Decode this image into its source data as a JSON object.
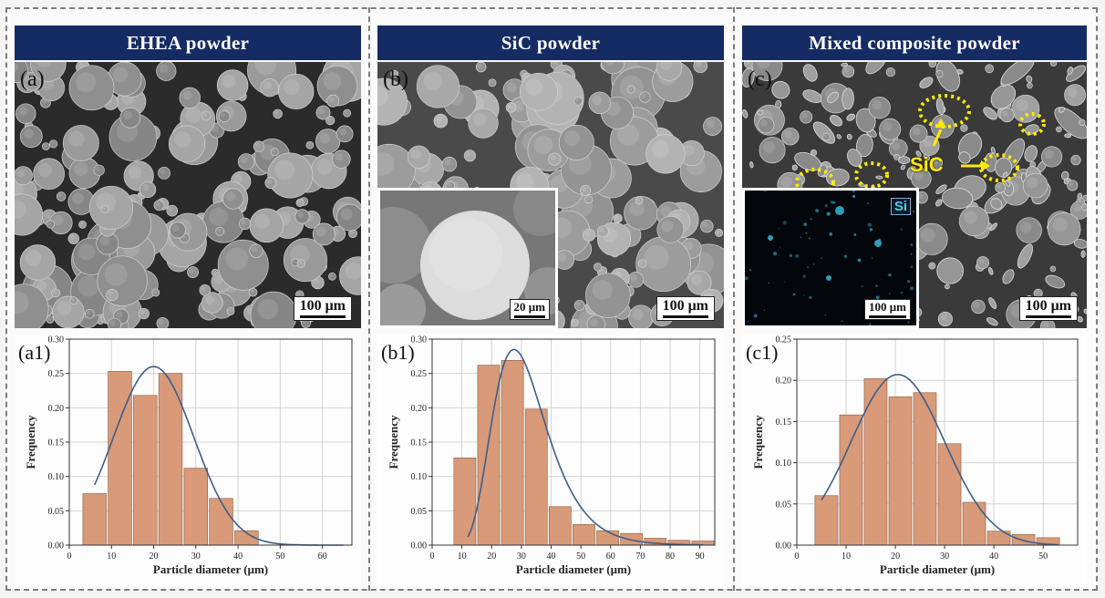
{
  "panels": [
    {
      "id": "ehea",
      "title": "EHEA powder",
      "sem_label": "(a)",
      "scale_label": "100 μm",
      "hist_label": "(a1)"
    },
    {
      "id": "sic",
      "title": "SiC powder",
      "sem_label": "(b)",
      "scale_label": "100 μm",
      "inset_scale_label": "20 μm",
      "hist_label": "(b1)"
    },
    {
      "id": "mixed",
      "title": "Mixed composite powder",
      "sem_label": "(c)",
      "scale_label": "100 μm",
      "inset_scale_label": "100 μm",
      "inset_element_label": "Si",
      "annotation": "SiC",
      "hist_label": "(c1)"
    }
  ],
  "colors": {
    "banner": "#152b63",
    "bar_fill": "#d89a78",
    "bar_stroke": "#8a5a3c",
    "curve": "#3e5e8a",
    "annotation": "#ffea00"
  },
  "chart_data": [
    {
      "type": "bar",
      "xlabel": "Particle diameter (μm)",
      "ylabel": "Frequency",
      "xlim": [
        0,
        67
      ],
      "ylim": [
        0,
        0.3
      ],
      "xticks": [
        0,
        10,
        20,
        30,
        40,
        50,
        60
      ],
      "yticks": [
        0.0,
        0.05,
        0.1,
        0.15,
        0.2,
        0.25,
        0.3
      ],
      "bin_width": 6,
      "bins": [
        6,
        12,
        18,
        24,
        30,
        36,
        42
      ],
      "values": [
        0.075,
        0.253,
        0.218,
        0.25,
        0.112,
        0.068,
        0.021
      ],
      "fit_curve": {
        "type": "normal",
        "mean": 20,
        "sd": 9.5,
        "peak": 0.26,
        "x_range": [
          6,
          65
        ]
      }
    },
    {
      "type": "bar",
      "xlabel": "Particle diameter (μm)",
      "ylabel": "Frequency",
      "xlim": [
        0,
        95
      ],
      "ylim": [
        0,
        0.3
      ],
      "xticks": [
        0,
        10,
        20,
        30,
        40,
        50,
        60,
        70,
        80,
        90
      ],
      "yticks": [
        0.0,
        0.05,
        0.1,
        0.15,
        0.2,
        0.25,
        0.3
      ],
      "bin_width": 8,
      "bins": [
        11,
        19,
        27,
        35,
        43,
        51,
        59,
        67,
        75,
        83,
        91
      ],
      "values": [
        0.127,
        0.262,
        0.269,
        0.198,
        0.056,
        0.03,
        0.021,
        0.017,
        0.01,
        0.007,
        0.006
      ],
      "fit_curve": {
        "type": "lognormal",
        "peak_x": 27.5,
        "peak": 0.285,
        "sigma": 0.33,
        "x_range": [
          12,
          91
        ]
      }
    },
    {
      "type": "bar",
      "xlabel": "Particle diameter (μm)",
      "ylabel": "Frequency",
      "xlim": [
        0,
        57
      ],
      "ylim": [
        0,
        0.25
      ],
      "xticks": [
        0,
        10,
        20,
        30,
        40,
        50
      ],
      "yticks": [
        0.0,
        0.05,
        0.1,
        0.15,
        0.2,
        0.25
      ],
      "bin_width": 5,
      "bins": [
        6,
        11,
        16,
        21,
        26,
        31,
        36,
        41,
        46,
        51
      ],
      "values": [
        0.06,
        0.158,
        0.202,
        0.18,
        0.185,
        0.123,
        0.052,
        0.017,
        0.013,
        0.009
      ],
      "fit_curve": {
        "type": "normal",
        "mean": 20.5,
        "sd": 9.5,
        "peak": 0.207,
        "x_range": [
          5,
          53
        ]
      }
    }
  ]
}
